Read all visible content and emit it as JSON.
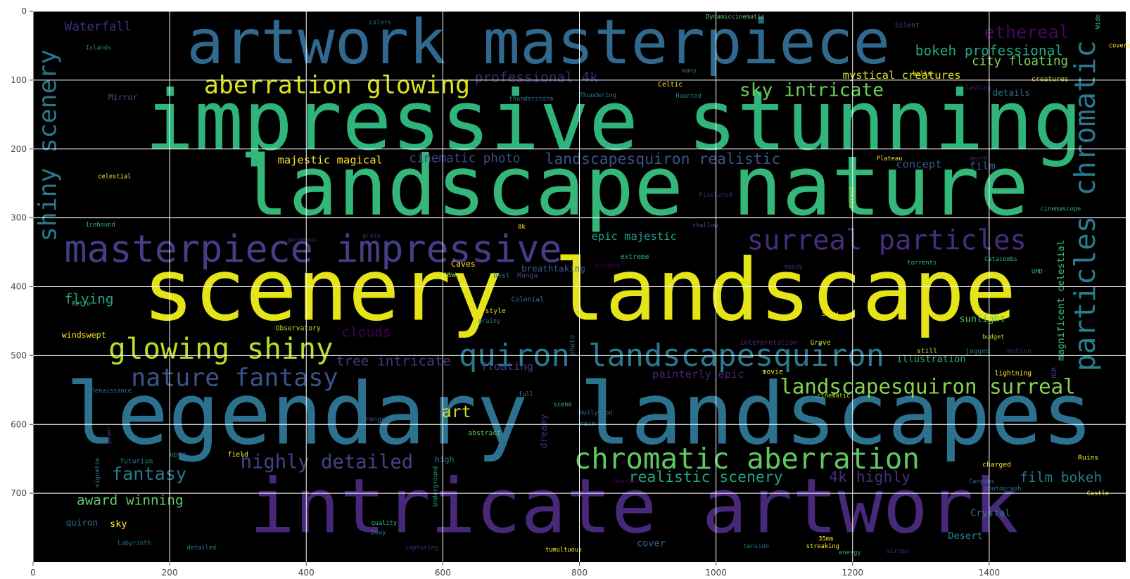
{
  "chart_data": {
    "type": "wordcloud",
    "xlim": [
      0,
      1600
    ],
    "ylim": [
      800,
      0
    ],
    "x_ticks": [
      0,
      200,
      400,
      600,
      800,
      1000,
      1200,
      1400
    ],
    "y_ticks": [
      0,
      100,
      200,
      300,
      400,
      500,
      600,
      700
    ],
    "grid": true,
    "background": "#000000",
    "words": [
      {
        "text": "impressive stunning",
        "x": 850,
        "y": 160,
        "size": 120,
        "color": "#2fb47c"
      },
      {
        "text": "landscape nature",
        "x": 880,
        "y": 255,
        "size": 120,
        "color": "#35b779"
      },
      {
        "text": "scenery landscape",
        "x": 800,
        "y": 405,
        "size": 125,
        "color": "#e5e419"
      },
      {
        "text": "legendary landscapes",
        "x": 800,
        "y": 585,
        "size": 125,
        "color": "#2c728e"
      },
      {
        "text": "intricate artwork",
        "x": 880,
        "y": 720,
        "size": 110,
        "color": "#482878"
      },
      {
        "text": "artwork masterpiece",
        "x": 740,
        "y": 45,
        "size": 90,
        "color": "#31688e"
      },
      {
        "text": "masterpiece impressive",
        "x": 410,
        "y": 345,
        "size": 55,
        "color": "#433e85"
      },
      {
        "text": "quiron landscapesquiron",
        "x": 935,
        "y": 500,
        "size": 45,
        "color": "#2a788e"
      },
      {
        "text": "chromatic aberration",
        "x": 1045,
        "y": 650,
        "size": 42,
        "color": "#5ec962"
      },
      {
        "text": "glowing shiny",
        "x": 275,
        "y": 490,
        "size": 42,
        "color": "#b5de2b"
      },
      {
        "text": "surreal particles",
        "x": 1250,
        "y": 333,
        "size": 40,
        "color": "#472d7b"
      },
      {
        "text": "nature fantasy",
        "x": 295,
        "y": 533,
        "size": 36,
        "color": "#3b528b"
      },
      {
        "text": "aberration glowing",
        "x": 445,
        "y": 108,
        "size": 36,
        "color": "#dde318"
      },
      {
        "text": "landscapesquiron surreal",
        "x": 1310,
        "y": 545,
        "size": 30,
        "color": "#86d549"
      },
      {
        "text": "highly detailed",
        "x": 430,
        "y": 655,
        "size": 28,
        "color": "#414487"
      },
      {
        "text": "shiny scenery",
        "x": 22,
        "y": 195,
        "size": 36,
        "color": "#2a788e",
        "rotate": true
      },
      {
        "text": "chromatic",
        "x": 1540,
        "y": 155,
        "size": 42,
        "color": "#2a788e",
        "rotate": true
      },
      {
        "text": "particles",
        "x": 1540,
        "y": 410,
        "size": 42,
        "color": "#287d8e",
        "rotate": true
      },
      {
        "text": "sky intricate",
        "x": 1140,
        "y": 115,
        "size": 27,
        "color": "#6ccd5a"
      },
      {
        "text": "fantasy",
        "x": 170,
        "y": 672,
        "size": 26,
        "color": "#2a788e"
      },
      {
        "text": "realistic scenery",
        "x": 985,
        "y": 677,
        "size": 22,
        "color": "#22a884"
      },
      {
        "text": "film bokeh",
        "x": 1505,
        "y": 677,
        "size": 20,
        "color": "#2a788e"
      },
      {
        "text": "4k highly",
        "x": 1225,
        "y": 677,
        "size": 22,
        "color": "#472d7b"
      },
      {
        "text": "ethereal",
        "x": 1455,
        "y": 30,
        "size": 26,
        "color": "#46085c"
      },
      {
        "text": "bokeh professional",
        "x": 1400,
        "y": 57,
        "size": 20,
        "color": "#22a884"
      },
      {
        "text": "city floating",
        "x": 1445,
        "y": 73,
        "size": 18,
        "color": "#7ad151"
      },
      {
        "text": "mystical creatures",
        "x": 1272,
        "y": 93,
        "size": 16,
        "color": "#dce319"
      },
      {
        "text": "landscapesquiron realistic",
        "x": 922,
        "y": 215,
        "size": 22,
        "color": "#3b528b"
      },
      {
        "text": "cinematic photo",
        "x": 632,
        "y": 214,
        "size": 18,
        "color": "#3e4989"
      },
      {
        "text": "majestic magical",
        "x": 435,
        "y": 216,
        "size": 16,
        "color": "#fde725"
      },
      {
        "text": "professional 4k",
        "x": 737,
        "y": 96,
        "size": 20,
        "color": "#482878"
      },
      {
        "text": "tree intricate",
        "x": 528,
        "y": 508,
        "size": 20,
        "color": "#453781"
      },
      {
        "text": "art",
        "x": 620,
        "y": 582,
        "size": 24,
        "color": "#c2df23"
      },
      {
        "text": "floating",
        "x": 694,
        "y": 516,
        "size": 16,
        "color": "#433e85"
      },
      {
        "text": "painterly epic",
        "x": 974,
        "y": 527,
        "size": 16,
        "color": "#482173"
      },
      {
        "text": "award winning",
        "x": 142,
        "y": 710,
        "size": 20,
        "color": "#5ec962"
      },
      {
        "text": "clouds",
        "x": 488,
        "y": 466,
        "size": 20,
        "color": "#440154"
      },
      {
        "text": "flying",
        "x": 82,
        "y": 418,
        "size": 20,
        "color": "#20a386"
      },
      {
        "text": "Waterfall",
        "x": 95,
        "y": 23,
        "size": 18,
        "color": "#472d7b"
      },
      {
        "text": "epic majestic",
        "x": 880,
        "y": 327,
        "size": 16,
        "color": "#1fa088"
      },
      {
        "text": "breathtaking",
        "x": 715,
        "y": 368,
        "size": 13,
        "color": "#38598c"
      },
      {
        "text": "concept",
        "x": 1297,
        "y": 222,
        "size": 16,
        "color": "#39568c"
      },
      {
        "text": "film",
        "x": 1390,
        "y": 225,
        "size": 16,
        "color": "#3b528b"
      },
      {
        "text": "magnificent celestial",
        "x": 1505,
        "y": 420,
        "size": 14,
        "color": "#3fbc73",
        "rotate": true
      },
      {
        "text": "illustration",
        "x": 1315,
        "y": 505,
        "size": 14,
        "color": "#2db27d"
      },
      {
        "text": "sunlight",
        "x": 1390,
        "y": 447,
        "size": 14,
        "color": "#5ec962"
      },
      {
        "text": "Crystal",
        "x": 1402,
        "y": 729,
        "size": 14,
        "color": "#2a788e"
      },
      {
        "text": "Desert",
        "x": 1365,
        "y": 762,
        "size": 14,
        "color": "#26828e"
      },
      {
        "text": "cover",
        "x": 905,
        "y": 773,
        "size": 14,
        "color": "#31688e"
      },
      {
        "text": "quiron",
        "x": 48,
        "y": 737,
        "size": 13,
        "color": "#2a788e"
      },
      {
        "text": "sky",
        "x": 125,
        "y": 745,
        "size": 14,
        "color": "#fde725"
      },
      {
        "text": "details",
        "x": 1405,
        "y": 113,
        "size": 13,
        "color": "#2a788e"
      },
      {
        "text": "Mirror",
        "x": 110,
        "y": 120,
        "size": 12,
        "color": "#3b528b"
      },
      {
        "text": "high",
        "x": 588,
        "y": 646,
        "size": 12,
        "color": "#2a788e"
      },
      {
        "text": "windswept",
        "x": 42,
        "y": 465,
        "size": 12,
        "color": "#fde725"
      },
      {
        "text": "Caves",
        "x": 612,
        "y": 362,
        "size": 12,
        "color": "#fde725"
      },
      {
        "text": "raw",
        "x": 598,
        "y": 377,
        "size": 12,
        "color": "#90d743"
      },
      {
        "text": "Manga",
        "x": 709,
        "y": 380,
        "size": 10,
        "color": "#3e4989"
      },
      {
        "text": "best",
        "x": 674,
        "y": 380,
        "size": 10,
        "color": "#2a788e"
      },
      {
        "text": "extreme",
        "x": 860,
        "y": 353,
        "size": 10,
        "color": "#2db27d"
      },
      {
        "text": "kingdom",
        "x": 822,
        "y": 366,
        "size": 9,
        "color": "#440154"
      },
      {
        "text": "Colonial",
        "x": 700,
        "y": 415,
        "size": 10,
        "color": "#2a788e"
      },
      {
        "text": "style",
        "x": 662,
        "y": 432,
        "size": 10,
        "color": "#dce319"
      },
      {
        "text": "grainy",
        "x": 652,
        "y": 447,
        "size": 9,
        "color": "#2a788e"
      },
      {
        "text": "Observatory",
        "x": 355,
        "y": 457,
        "size": 10,
        "color": "#c2df23"
      },
      {
        "text": "Retro",
        "x": 57,
        "y": 422,
        "size": 9,
        "color": "#3fbc73"
      },
      {
        "text": "photo",
        "x": 790,
        "y": 485,
        "size": 10,
        "color": "#31688e",
        "rotate": true
      },
      {
        "text": "interpretation",
        "x": 1035,
        "y": 478,
        "size": 10,
        "color": "#482878"
      },
      {
        "text": "Grove",
        "x": 1138,
        "y": 478,
        "size": 10,
        "color": "#bddf26"
      },
      {
        "text": "Snow",
        "x": 1155,
        "y": 436,
        "size": 10,
        "color": "#fde725"
      },
      {
        "text": "still",
        "x": 1294,
        "y": 490,
        "size": 10,
        "color": "#c2df23"
      },
      {
        "text": "budget",
        "x": 1390,
        "y": 470,
        "size": 9,
        "color": "#bddf26"
      },
      {
        "text": "jagged",
        "x": 1365,
        "y": 490,
        "size": 10,
        "color": "#2a788e"
      },
      {
        "text": "motion",
        "x": 1426,
        "y": 490,
        "size": 10,
        "color": "#482878"
      },
      {
        "text": "movie",
        "x": 1068,
        "y": 520,
        "size": 10,
        "color": "#fde725"
      },
      {
        "text": "lightning",
        "x": 1408,
        "y": 522,
        "size": 10,
        "color": "#fde725"
      },
      {
        "text": "HDR",
        "x": 1496,
        "y": 525,
        "size": 9,
        "color": "#453781",
        "rotate": true
      },
      {
        "text": "cinematic",
        "x": 1148,
        "y": 555,
        "size": 9,
        "color": "#bddf26"
      },
      {
        "text": "Renaissance",
        "x": 85,
        "y": 548,
        "size": 9,
        "color": "#2a788e"
      },
      {
        "text": "full",
        "x": 711,
        "y": 553,
        "size": 9,
        "color": "#2a788e"
      },
      {
        "text": "scene",
        "x": 762,
        "y": 568,
        "size": 9,
        "color": "#35b779"
      },
      {
        "text": "Hollywood",
        "x": 800,
        "y": 580,
        "size": 9,
        "color": "#31688e"
      },
      {
        "text": "dreamy",
        "x": 748,
        "y": 610,
        "size": 14,
        "color": "#482878",
        "rotate": true
      },
      {
        "text": "range",
        "x": 486,
        "y": 589,
        "size": 10,
        "color": "#3b528b"
      },
      {
        "text": "rain",
        "x": 800,
        "y": 596,
        "size": 10,
        "color": "#31688e"
      },
      {
        "text": "abstract",
        "x": 637,
        "y": 609,
        "size": 10,
        "color": "#5ec962"
      },
      {
        "text": "power",
        "x": 112,
        "y": 615,
        "size": 9,
        "color": "#472d7b",
        "rotate": true
      },
      {
        "text": "upon",
        "x": 200,
        "y": 640,
        "size": 10,
        "color": "#2a788e"
      },
      {
        "text": "field",
        "x": 285,
        "y": 640,
        "size": 10,
        "color": "#fde725"
      },
      {
        "text": "futurism",
        "x": 127,
        "y": 650,
        "size": 10,
        "color": "#2a788e"
      },
      {
        "text": "vignette",
        "x": 95,
        "y": 670,
        "size": 9,
        "color": "#287d8e",
        "rotate": true
      },
      {
        "text": "Underground",
        "x": 590,
        "y": 690,
        "size": 9,
        "color": "#1fa088",
        "rotate": true
      },
      {
        "text": "charged",
        "x": 1390,
        "y": 655,
        "size": 10,
        "color": "#fde725"
      },
      {
        "text": "Ruins",
        "x": 1530,
        "y": 645,
        "size": 10,
        "color": "#fde725"
      },
      {
        "text": "Meadows",
        "x": 850,
        "y": 680,
        "size": 9,
        "color": "#440154"
      },
      {
        "text": "Canyons",
        "x": 1370,
        "y": 680,
        "size": 9,
        "color": "#2a788e"
      },
      {
        "text": "photograph",
        "x": 1393,
        "y": 690,
        "size": 9,
        "color": "#2a788e"
      },
      {
        "text": "Castle",
        "x": 1543,
        "y": 697,
        "size": 9,
        "color": "#fde725"
      },
      {
        "text": "quality",
        "x": 495,
        "y": 740,
        "size": 9,
        "color": "#2db27d"
      },
      {
        "text": "Dewy",
        "x": 495,
        "y": 754,
        "size": 9,
        "color": "#2a788e"
      },
      {
        "text": "Labyrinth",
        "x": 124,
        "y": 769,
        "size": 9,
        "color": "#2a788e"
      },
      {
        "text": "detailed",
        "x": 225,
        "y": 776,
        "size": 9,
        "color": "#2a788e"
      },
      {
        "text": "capturing",
        "x": 545,
        "y": 776,
        "size": 9,
        "color": "#482878"
      },
      {
        "text": "tumultuous",
        "x": 750,
        "y": 779,
        "size": 9,
        "color": "#fde725"
      },
      {
        "text": "tension",
        "x": 1040,
        "y": 774,
        "size": 9,
        "color": "#2a788e"
      },
      {
        "text": "streaking",
        "x": 1132,
        "y": 774,
        "size": 9,
        "color": "#fde725"
      },
      {
        "text": "35mm",
        "x": 1150,
        "y": 763,
        "size": 9,
        "color": "#fde725"
      },
      {
        "text": "energy",
        "x": 1180,
        "y": 783,
        "size": 9,
        "color": "#2db27d"
      },
      {
        "text": "across",
        "x": 1250,
        "y": 781,
        "size": 9,
        "color": "#482878"
      },
      {
        "text": "Islands",
        "x": 77,
        "y": 50,
        "size": 9,
        "color": "#2a788e"
      },
      {
        "text": "colors",
        "x": 492,
        "y": 13,
        "size": 9,
        "color": "#2a788e"
      },
      {
        "text": "Dynamiccinematic",
        "x": 985,
        "y": 5,
        "size": 9,
        "color": "#5ec962"
      },
      {
        "text": "Silent",
        "x": 1262,
        "y": 17,
        "size": 10,
        "color": "#3b528b"
      },
      {
        "text": "Wide",
        "x": 1560,
        "y": 15,
        "size": 9,
        "color": "#2db27d",
        "rotate": true
      },
      {
        "text": "covered",
        "x": 1575,
        "y": 47,
        "size": 9,
        "color": "#fde725"
      },
      {
        "text": "bolts",
        "x": 1288,
        "y": 88,
        "size": 9,
        "color": "#fde725"
      },
      {
        "text": "creatures",
        "x": 1462,
        "y": 95,
        "size": 10,
        "color": "#bddf26"
      },
      {
        "text": "lashing",
        "x": 1365,
        "y": 108,
        "size": 9,
        "color": "#482878"
      },
      {
        "text": "many",
        "x": 950,
        "y": 83,
        "size": 9,
        "color": "#31688e"
      },
      {
        "text": "Celtic",
        "x": 915,
        "y": 103,
        "size": 10,
        "color": "#fde725"
      },
      {
        "text": "Haunted",
        "x": 941,
        "y": 120,
        "size": 9,
        "color": "#2a788e"
      },
      {
        "text": "Thundering",
        "x": 800,
        "y": 119,
        "size": 9,
        "color": "#2a788e"
      },
      {
        "text": "thunderstorm",
        "x": 697,
        "y": 124,
        "size": 9,
        "color": "#2a788e"
      },
      {
        "text": "Plateau",
        "x": 1235,
        "y": 211,
        "size": 9,
        "color": "#fde725"
      },
      {
        "text": "depth",
        "x": 1370,
        "y": 211,
        "size": 9,
        "color": "#482878"
      },
      {
        "text": "celestial",
        "x": 95,
        "y": 237,
        "size": 9,
        "color": "#fde725"
      },
      {
        "text": "Forest",
        "x": 1200,
        "y": 270,
        "size": 9,
        "color": "#dce319",
        "rotate": true
      },
      {
        "text": "Pixelated",
        "x": 975,
        "y": 264,
        "size": 9,
        "color": "#482878"
      },
      {
        "text": "cinemascope",
        "x": 1475,
        "y": 284,
        "size": 9,
        "color": "#2db27d"
      },
      {
        "text": "Icebound",
        "x": 77,
        "y": 307,
        "size": 9,
        "color": "#2db27d"
      },
      {
        "text": "8k",
        "x": 710,
        "y": 310,
        "size": 9,
        "color": "#fde725"
      },
      {
        "text": "shallow",
        "x": 965,
        "y": 308,
        "size": 9,
        "color": "#3b528b"
      },
      {
        "text": "grain",
        "x": 482,
        "y": 323,
        "size": 9,
        "color": "#482878"
      },
      {
        "text": "gorgeous",
        "x": 372,
        "y": 329,
        "size": 9,
        "color": "#482878"
      },
      {
        "text": "moody",
        "x": 1100,
        "y": 368,
        "size": 9,
        "color": "#482878"
      },
      {
        "text": "torrents",
        "x": 1280,
        "y": 362,
        "size": 9,
        "color": "#2db27d"
      },
      {
        "text": "Catacombs",
        "x": 1393,
        "y": 357,
        "size": 9,
        "color": "#2db27d"
      },
      {
        "text": "UHD",
        "x": 1462,
        "y": 375,
        "size": 9,
        "color": "#2db27d"
      }
    ]
  }
}
